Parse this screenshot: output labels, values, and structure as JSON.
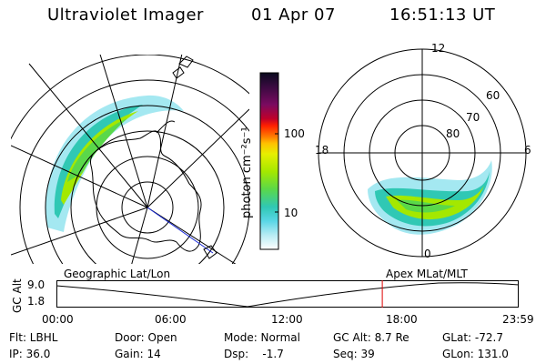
{
  "header": {
    "instrument": "Ultraviolet Imager",
    "date": "01 Apr 07",
    "time": "16:51:13 UT"
  },
  "left_panel": {
    "caption": "Geographic Lat/Lon"
  },
  "right_panel": {
    "caption": "Apex MLat/MLT",
    "mlt_labels": [
      "12",
      "18",
      "6",
      "0"
    ],
    "mlat_labels": [
      "60",
      "70",
      "80"
    ]
  },
  "colorbar": {
    "unit_label": "photon cm⁻²s⁻¹",
    "ticks": [
      "100",
      "10"
    ],
    "colors": [
      "#0a0a1e",
      "#3a0a40",
      "#7a0a60",
      "#c0002a",
      "#ff2000",
      "#ff7a00",
      "#ffc000",
      "#e6ef00",
      "#a4e800",
      "#5ad84a",
      "#30c8b4",
      "#5ad6e6",
      "#b8ecf4",
      "#ffffff"
    ]
  },
  "altitude_plot": {
    "ylabel": "GC Alt",
    "y_ticks": [
      "9.0",
      "1.8"
    ],
    "x_ticks": [
      "00:00",
      "06:00",
      "12:00",
      "18:00",
      "23:59"
    ],
    "current_time_fraction": 0.705,
    "marker_color": "#e00000"
  },
  "footer": {
    "filter": "Flt: LBHL",
    "door": "Door: Open",
    "mode": "Mode: Normal",
    "gc_alt": "GC Alt: 8.7 Re",
    "glat": "GLat: -72.7",
    "ip": "IP: 36.0",
    "gain": "Gain: 14",
    "dsp": "Dsp:    -1.7",
    "seq": "Seq: 39",
    "glon": "GLon: 131.0"
  }
}
